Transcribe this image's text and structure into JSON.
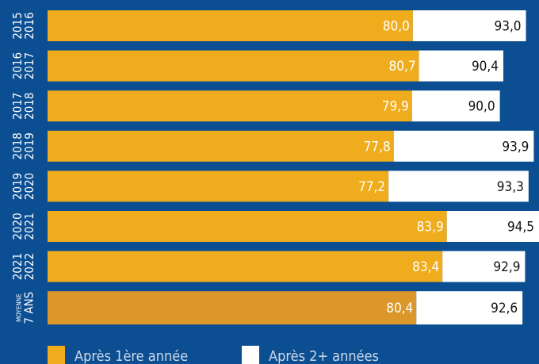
{
  "chart_data": {
    "type": "bar",
    "orientation": "horizontal",
    "categories": [
      [
        "2015",
        "2016"
      ],
      [
        "2016",
        "2017"
      ],
      [
        "2017",
        "2018"
      ],
      [
        "2018",
        "2019"
      ],
      [
        "2019",
        "2020"
      ],
      [
        "2020",
        "2021"
      ],
      [
        "2021",
        "2022"
      ],
      [
        "MOYENNE",
        "7 ANS"
      ]
    ],
    "series": [
      {
        "name": "Après 1ère année",
        "color": "#efac1c",
        "highlight_color": "#dc972b",
        "values": [
          80.0,
          80.7,
          79.9,
          77.8,
          77.2,
          83.9,
          83.4,
          80.4
        ],
        "value_labels": [
          "80,0",
          "80,7",
          "79,9",
          "77,8",
          "77,2",
          "83,9",
          "83,4",
          "80,4"
        ]
      },
      {
        "name": "Après 2+ années",
        "color": "#ffffff",
        "values": [
          93.0,
          90.4,
          90.0,
          93.9,
          93.3,
          94.5,
          92.9,
          92.6
        ],
        "value_labels": [
          "93,0",
          "90,4",
          "90,0",
          "93,9",
          "93,3",
          "94,5",
          "92,9",
          "92,6"
        ]
      }
    ],
    "xlim": [
      38,
      94.5
    ]
  }
}
